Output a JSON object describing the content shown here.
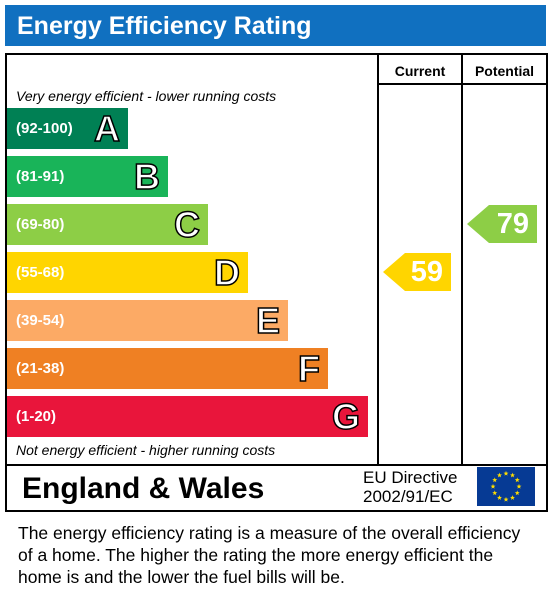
{
  "header": {
    "title": "Energy Efficiency Rating"
  },
  "chart_data": {
    "type": "bar",
    "title": "Energy Efficiency Rating",
    "columns": [
      "Current",
      "Potential"
    ],
    "top_note": "Very energy efficient - lower running costs",
    "bottom_note": "Not energy efficient - higher running costs",
    "bands": [
      {
        "letter": "A",
        "range": "(92-100)",
        "min": 92,
        "max": 100,
        "color": "#008054"
      },
      {
        "letter": "B",
        "range": "(81-91)",
        "min": 81,
        "max": 91,
        "color": "#19b459"
      },
      {
        "letter": "C",
        "range": "(69-80)",
        "min": 69,
        "max": 80,
        "color": "#8dce46"
      },
      {
        "letter": "D",
        "range": "(55-68)",
        "min": 55,
        "max": 68,
        "color": "#ffd500"
      },
      {
        "letter": "E",
        "range": "(39-54)",
        "min": 39,
        "max": 54,
        "color": "#fcaa65"
      },
      {
        "letter": "F",
        "range": "(21-38)",
        "min": 21,
        "max": 38,
        "color": "#ef8023"
      },
      {
        "letter": "G",
        "range": "(1-20)",
        "min": 1,
        "max": 20,
        "color": "#e9153b"
      }
    ],
    "current": {
      "value": 59,
      "band": "D"
    },
    "potential": {
      "value": 79,
      "band": "C"
    }
  },
  "footer": {
    "region": "England & Wales",
    "directive_line1": "EU Directive",
    "directive_line2": "2002/91/EC",
    "flag_icon": "eu-flag-icon"
  },
  "description": "The energy efficiency rating is a measure of the overall efficiency of a home.  The higher the rating the more energy efficient the home is and the lower the fuel bills will be."
}
